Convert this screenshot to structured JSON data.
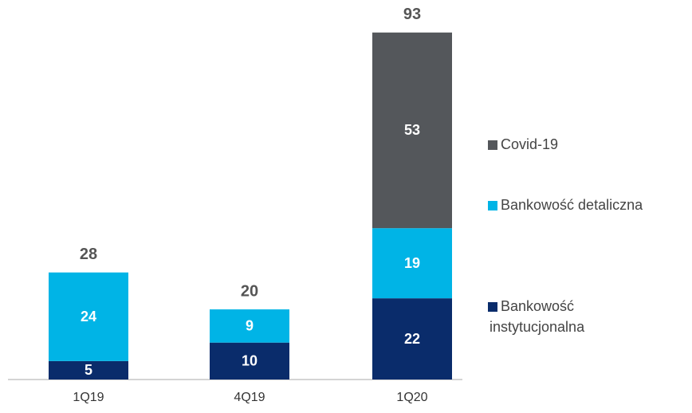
{
  "chart_data": {
    "type": "bar",
    "stacked": true,
    "categories": [
      "1Q19",
      "4Q19",
      "1Q20"
    ],
    "series": [
      {
        "name": "Bankowość instytucjonalna",
        "color": "#0a2c6b",
        "values": [
          5,
          10,
          22
        ]
      },
      {
        "name": "Bankowość detaliczna",
        "color": "#00b4e6",
        "values": [
          24,
          9,
          19
        ]
      },
      {
        "name": "Covid-19",
        "color": "#54575b",
        "values": [
          null,
          null,
          53
        ]
      }
    ],
    "totals": [
      28,
      20,
      93
    ]
  }
}
